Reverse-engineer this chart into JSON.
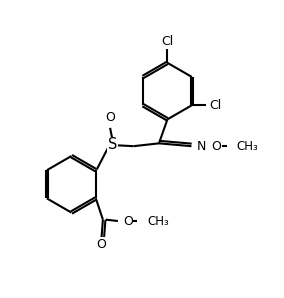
{
  "bg_color": "#ffffff",
  "line_color": "#000000",
  "line_width": 1.5,
  "font_size": 9.0,
  "figsize": [
    2.84,
    2.98
  ],
  "dpi": 100,
  "xlim": [
    0,
    10
  ],
  "ylim": [
    0,
    10.5
  ]
}
